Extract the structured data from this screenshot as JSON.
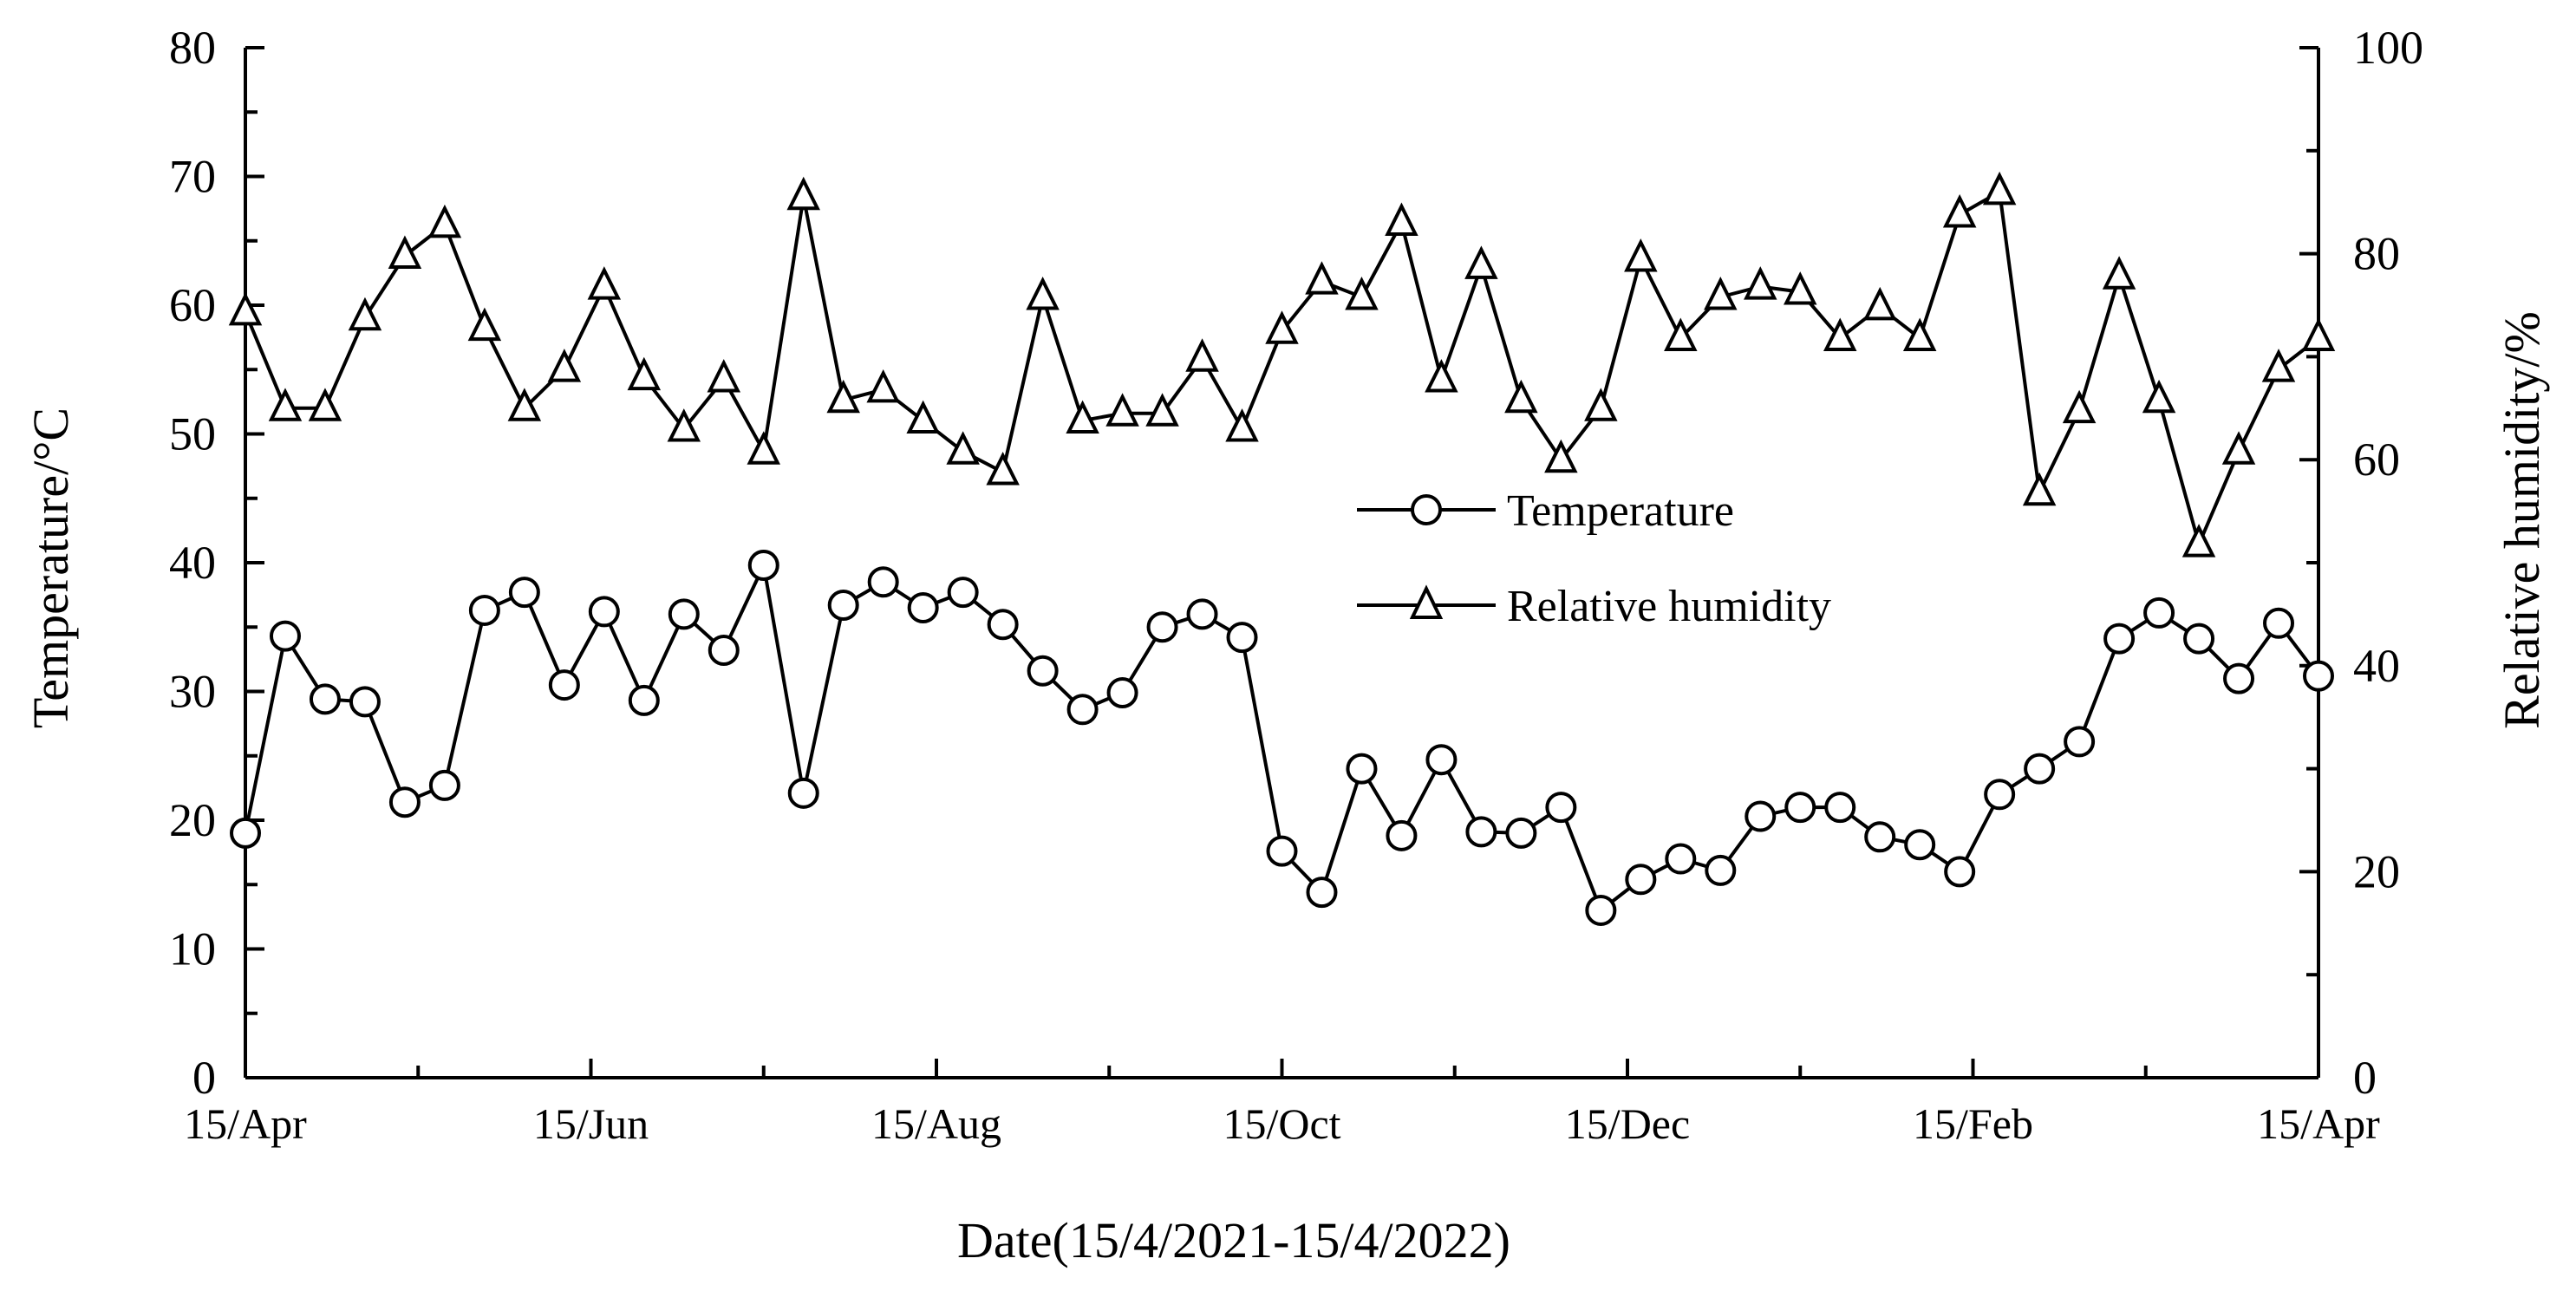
{
  "chart_data": {
    "type": "line",
    "xlabel": "Date(15/4/2021-15/4/2022)",
    "ylabel_left": "Temperature/°C",
    "ylabel_right": "Relative humidity/%",
    "ylim_left": [
      0,
      80
    ],
    "ylim_right": [
      0,
      100
    ],
    "yticks_left": [
      "0",
      "10",
      "20",
      "30",
      "40",
      "50",
      "60",
      "70",
      "80"
    ],
    "yticks_right": [
      "0",
      "20",
      "40",
      "60",
      "80",
      "100"
    ],
    "xticks": [
      "15/Apr",
      "15/Jun",
      "15/Aug",
      "15/Oct",
      "15/Dec",
      "15/Feb",
      "15/Apr"
    ],
    "legend": {
      "position": "center-right",
      "entries": [
        "Temperature",
        "Relative humidity"
      ]
    },
    "series": [
      {
        "name": "Temperature",
        "axis": "left",
        "marker": "circle",
        "values": [
          19.0,
          34.3,
          29.4,
          29.2,
          21.4,
          22.7,
          36.3,
          37.7,
          30.5,
          36.2,
          29.3,
          36.0,
          33.2,
          39.8,
          22.1,
          36.7,
          38.5,
          36.5,
          37.7,
          35.2,
          31.6,
          28.6,
          29.9,
          35.0,
          36.0,
          34.2,
          17.6,
          14.4,
          24.0,
          18.8,
          24.7,
          19.1,
          19.0,
          21.0,
          13.0,
          15.4,
          17.0,
          16.1,
          20.3,
          21.0,
          21.0,
          18.7,
          18.1,
          16.0,
          22.0,
          24.0,
          26.1,
          34.1,
          36.1,
          34.1,
          31.0,
          35.3,
          31.2
        ]
      },
      {
        "name": "Relative humidity",
        "axis": "right",
        "marker": "triangle",
        "values": [
          74.3,
          65.0,
          65.0,
          73.8,
          79.8,
          82.8,
          72.8,
          65.0,
          68.8,
          76.8,
          68.0,
          63.0,
          67.8,
          60.8,
          85.5,
          65.8,
          66.8,
          63.8,
          60.8,
          58.8,
          75.8,
          63.8,
          64.5,
          64.5,
          69.8,
          63.0,
          72.5,
          77.3,
          75.8,
          83.0,
          67.8,
          78.8,
          65.8,
          60.0,
          65.0,
          79.5,
          71.8,
          75.8,
          76.8,
          76.3,
          71.8,
          74.8,
          71.8,
          83.8,
          86.0,
          56.8,
          64.8,
          77.8,
          65.8,
          51.8,
          60.8,
          68.8,
          71.8
        ]
      }
    ]
  }
}
